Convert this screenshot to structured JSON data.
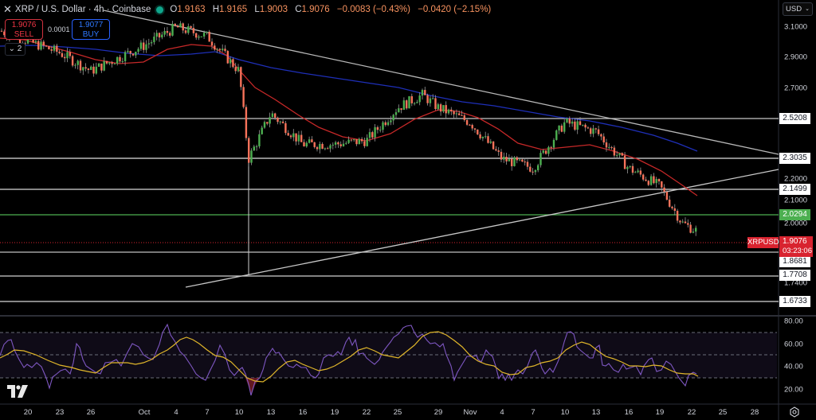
{
  "header": {
    "close_icon": "close-x-icon",
    "symbol_title": "XRP / U.S. Dollar · 4h · Coinbase",
    "market_status_color": "#0fa68c",
    "open_label": "O",
    "open": "1.9163",
    "high_label": "H",
    "high": "1.9165",
    "low_label": "L",
    "low": "1.9003",
    "close_label": "C",
    "close": "1.9076",
    "change": "−0.0083 (−0.43%)",
    "change_period": "−0.0420 (−2.15%)"
  },
  "trade": {
    "sell_price": "1.9076",
    "sell_label": "SELL",
    "spread": "0.0001",
    "buy_price": "1.9077",
    "buy_label": "BUY",
    "collapse_label": "2"
  },
  "price_axis": {
    "currency": "USD",
    "ticks": [
      "3.1000",
      "2.9000",
      "2.7000",
      "2.2000",
      "2.1000",
      "2.0000",
      "1.7400"
    ],
    "levels": [
      {
        "value": "2.5208",
        "color": "#ffffff"
      },
      {
        "value": "2.3035",
        "color": "#ffffff"
      },
      {
        "value": "2.1499",
        "color": "#ffffff"
      },
      {
        "value": "2.0294",
        "color": "#4caf50"
      },
      {
        "value": "1.8681",
        "color": "#ffffff"
      },
      {
        "value": "1.7708",
        "color": "#ffffff"
      },
      {
        "value": "1.6733",
        "color": "#ffffff"
      }
    ],
    "last_price": "1.9076",
    "countdown": "03:23:06",
    "symbol_tag": "XRPUSD"
  },
  "rsi_axis": {
    "ticks": [
      "80.00",
      "60.00",
      "40.00",
      "20.00"
    ]
  },
  "time_axis": {
    "labels": [
      "20",
      "23",
      "26",
      "Oct",
      "4",
      "7",
      "10",
      "13",
      "16",
      "19",
      "22",
      "25",
      "29",
      "Nov",
      "4",
      "7",
      "10",
      "13",
      "16",
      "19",
      "22",
      "25",
      "28"
    ]
  },
  "colors": {
    "bull": "#4caf50",
    "bear": "#f7725a",
    "ma_fast": "#c62828",
    "ma_slow": "#1e2fb8",
    "rsi": "#7e57c2",
    "rsi_ma": "#e0b62a",
    "trendline": "#b2b5be",
    "last_price": "#d8232f"
  },
  "chart_data": [
    {
      "type": "candlestick",
      "title": "XRP / U.S. Dollar · 4h · Coinbase",
      "xlabel": "",
      "ylabel": "USD",
      "ylim": [
        1.6,
        3.18
      ],
      "x_ticks": [
        "20",
        "23",
        "26",
        "Oct",
        "4",
        "7",
        "10",
        "13",
        "16",
        "19",
        "22",
        "25",
        "29",
        "Nov",
        "4",
        "7",
        "10",
        "13",
        "16",
        "19",
        "22",
        "25",
        "28"
      ],
      "y_ticks": [
        3.1,
        2.9,
        2.7,
        2.2,
        2.1,
        2.0,
        1.74
      ],
      "last": {
        "open": 1.9163,
        "high": 1.9165,
        "low": 1.9003,
        "close": 1.9076,
        "change": -0.0083,
        "change_pct": -0.43
      },
      "approx_closes_by_date": {
        "Sep 20": 3.0,
        "Sep 23": 2.88,
        "Sep 26": 2.78,
        "Oct 1": 2.92,
        "Oct 4": 3.02,
        "Oct 7": 2.97,
        "Oct 10": 2.78,
        "Oct 11": 2.3,
        "Oct 13": 2.55,
        "Oct 16": 2.38,
        "Oct 19": 2.38,
        "Oct 22": 2.4,
        "Oct 25": 2.58,
        "Oct 27": 2.65,
        "Oct 29": 2.58,
        "Nov 1": 2.5,
        "Nov 4": 2.3,
        "Nov 7": 2.25,
        "Nov 10": 2.5,
        "Nov 13": 2.45,
        "Nov 16": 2.25,
        "Nov 19": 2.15,
        "Nov 21": 1.95,
        "Nov 22": 1.9076
      },
      "horizontal_levels": [
        2.5208,
        2.3035,
        2.1499,
        2.0294,
        1.8681,
        1.7708,
        1.6733
      ],
      "trendlines": [
        {
          "name": "descending resistance",
          "from": {
            "x": "Sep 20",
            "y": 3.18
          },
          "to": {
            "x": "Nov 28",
            "y": 2.32
          }
        },
        {
          "name": "ascending support",
          "from": {
            "x": "Oct 7",
            "y": 1.73
          },
          "to": {
            "x": "Nov 28",
            "y": 2.24
          }
        }
      ],
      "series": [
        {
          "name": "MA fast (red)",
          "values_hint": "from ~2.98 in Sep to ~2.13 on Nov 22"
        },
        {
          "name": "MA slow (blue)",
          "values_hint": "from ~2.93 in Sep to ~2.32 on Nov 19"
        }
      ]
    },
    {
      "type": "line",
      "title": "RSI",
      "ylim": [
        10,
        90
      ],
      "y_ticks": [
        80,
        60,
        40,
        20
      ],
      "bands": {
        "upper": 70,
        "middle": 50,
        "lower": 30
      },
      "series": [
        {
          "name": "RSI",
          "approx": [
            48,
            62,
            45,
            38,
            32,
            30,
            22,
            36,
            40,
            45,
            56,
            45,
            55,
            72,
            68,
            50,
            38,
            60,
            48,
            42,
            40,
            35,
            30,
            33
          ]
        },
        {
          "name": "RSI MA",
          "approx": [
            46,
            55,
            50,
            42,
            36,
            33,
            31,
            42,
            43,
            44,
            52,
            48,
            50,
            70,
            66,
            48,
            42,
            52,
            48,
            44,
            42,
            38,
            34,
            33
          ]
        }
      ]
    }
  ]
}
